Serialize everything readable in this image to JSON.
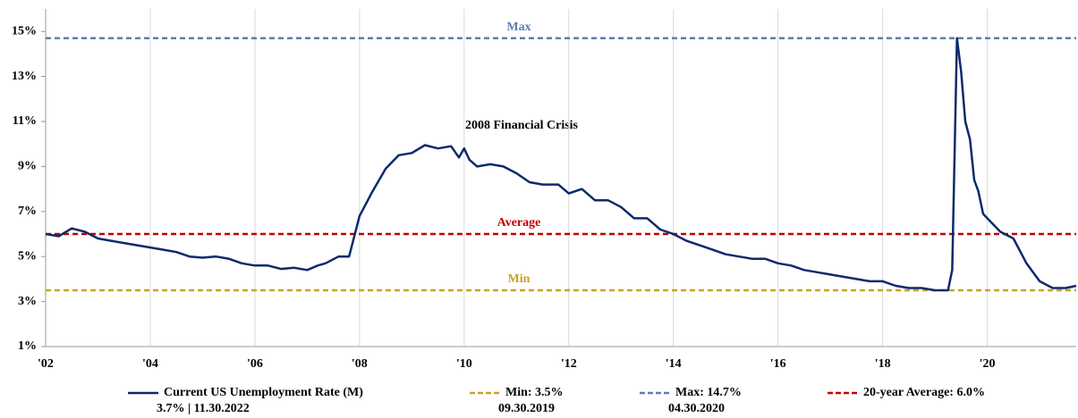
{
  "chart_data": {
    "type": "line",
    "annotation": "2008 Financial Crisis",
    "x": [
      2002,
      2002.25,
      2002.5,
      2002.75,
      2003,
      2003.25,
      2003.5,
      2003.75,
      2004,
      2004.25,
      2004.5,
      2004.75,
      2005,
      2005.25,
      2005.5,
      2005.75,
      2006,
      2006.25,
      2006.5,
      2006.75,
      2007,
      2007.2,
      2007.35,
      2007.6,
      2007.8,
      2008,
      2008.25,
      2008.5,
      2008.75,
      2009,
      2009.25,
      2009.5,
      2009.75,
      2009.9,
      2010,
      2010.1,
      2010.25,
      2010.5,
      2010.75,
      2011,
      2011.25,
      2011.5,
      2011.8,
      2012,
      2012.25,
      2012.5,
      2012.75,
      2013,
      2013.25,
      2013.5,
      2013.75,
      2014,
      2014.25,
      2014.5,
      2014.75,
      2015,
      2015.25,
      2015.5,
      2015.75,
      2016,
      2016.25,
      2016.5,
      2016.75,
      2017,
      2017.25,
      2017.5,
      2017.75,
      2018,
      2018.25,
      2018.5,
      2018.75,
      2019,
      2019.25,
      2019.33,
      2019.42,
      2019.5,
      2019.58,
      2019.67,
      2019.75,
      2019.83,
      2019.92,
      2020,
      2020.25,
      2020.5,
      2020.75,
      2021,
      2021.25,
      2021.5,
      2021.7
    ],
    "series": [
      {
        "name": "Current US Unemployment Rate (M)",
        "note": "3.7% | 11.30.2022",
        "color": "#0d2a6b",
        "values": [
          6.0,
          5.9,
          6.25,
          6.1,
          5.8,
          5.7,
          5.6,
          5.5,
          5.4,
          5.3,
          5.2,
          5.0,
          4.95,
          5.0,
          4.9,
          4.7,
          4.6,
          4.6,
          4.45,
          4.5,
          4.4,
          4.6,
          4.7,
          5.0,
          5.0,
          6.8,
          7.9,
          8.9,
          9.5,
          9.6,
          9.95,
          9.8,
          9.9,
          9.4,
          9.8,
          9.3,
          9.0,
          9.1,
          9.0,
          8.7,
          8.3,
          8.2,
          8.2,
          7.8,
          8.0,
          7.5,
          7.5,
          7.2,
          6.7,
          6.7,
          6.2,
          6.0,
          5.7,
          5.5,
          5.3,
          5.1,
          5.0,
          4.9,
          4.9,
          4.7,
          4.6,
          4.4,
          4.3,
          4.2,
          4.1,
          4.0,
          3.9,
          3.9,
          3.7,
          3.6,
          3.6,
          3.5,
          3.5,
          4.4,
          14.7,
          13.2,
          11.0,
          10.2,
          8.4,
          7.9,
          6.9,
          6.7,
          6.1,
          5.8,
          4.7,
          3.9,
          3.6,
          3.6,
          3.7
        ]
      }
    ],
    "reference_lines": [
      {
        "name": "Min: 3.5%",
        "label": "Min",
        "note": "09.30.2019",
        "value": 3.5,
        "color": "#c9a227"
      },
      {
        "name": "Max: 14.7%",
        "label": "Max",
        "note": "04.30.2020",
        "value": 14.7,
        "color": "#5b7fb0"
      },
      {
        "name": "20-year Average: 6.0%",
        "label": "Average",
        "value": 6.0,
        "color": "#c00000"
      }
    ],
    "xlim": [
      2002,
      2021.7
    ],
    "xticks": [
      {
        "value": 2002,
        "label": "'02"
      },
      {
        "value": 2004,
        "label": "'04"
      },
      {
        "value": 2006,
        "label": "'06"
      },
      {
        "value": 2008,
        "label": "'08"
      },
      {
        "value": 2010,
        "label": "'10"
      },
      {
        "value": 2012,
        "label": "'12"
      },
      {
        "value": 2014,
        "label": "'14"
      },
      {
        "value": 2016,
        "label": "'16"
      },
      {
        "value": 2018,
        "label": "'18"
      },
      {
        "value": 2020,
        "label": "'20"
      }
    ],
    "ylim": [
      1,
      16
    ],
    "yticks": [
      {
        "value": 1,
        "label": "1%"
      },
      {
        "value": 3,
        "label": "3%"
      },
      {
        "value": 5,
        "label": "5%"
      },
      {
        "value": 7,
        "label": "7%"
      },
      {
        "value": 9,
        "label": "9%"
      },
      {
        "value": 11,
        "label": "11%"
      },
      {
        "value": 13,
        "label": "13%"
      },
      {
        "value": 15,
        "label": "15%"
      }
    ],
    "grid": "x"
  }
}
